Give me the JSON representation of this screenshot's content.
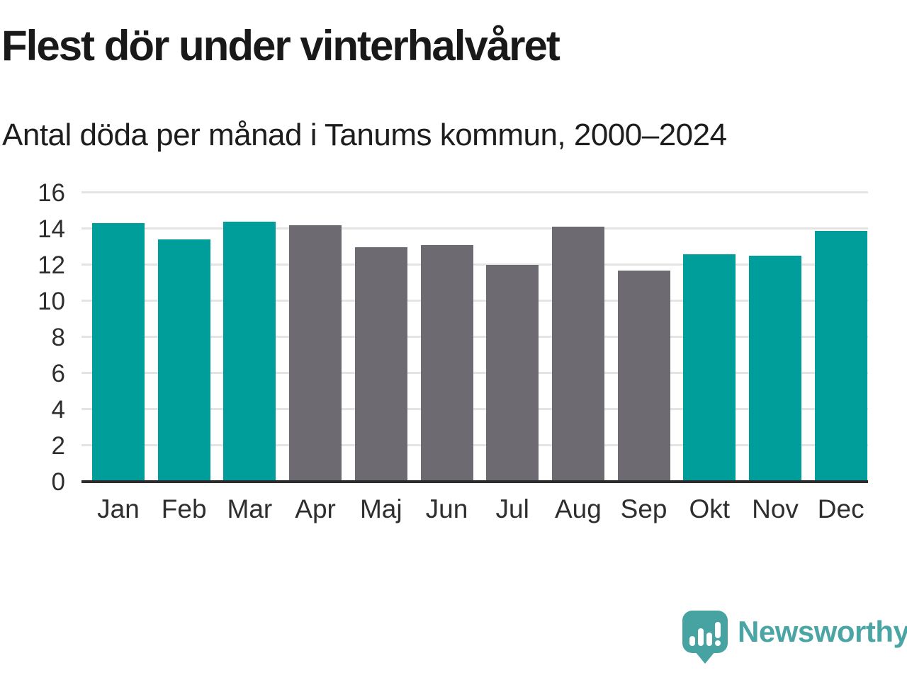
{
  "chart": {
    "title": "Flest dör under vinterhalvåret",
    "subtitle": "Antal döda per månad i Tanums kommun, 2000–2024"
  },
  "chart_data": {
    "type": "bar",
    "title": "Flest dör under vinterhalvåret",
    "subtitle": "Antal döda per månad i Tanums kommun, 2000–2024",
    "categories": [
      "Jan",
      "Feb",
      "Mar",
      "Apr",
      "Maj",
      "Jun",
      "Jul",
      "Aug",
      "Sep",
      "Okt",
      "Nov",
      "Dec"
    ],
    "values": [
      14.3,
      13.4,
      14.4,
      14.2,
      13.0,
      13.1,
      12.0,
      14.1,
      11.7,
      12.6,
      12.5,
      13.9
    ],
    "bar_groups": [
      "winter",
      "winter",
      "winter",
      "summer",
      "summer",
      "summer",
      "summer",
      "summer",
      "summer",
      "winter",
      "winter",
      "winter"
    ],
    "group_colors": {
      "winter": "#009e9b",
      "summer": "#6e6a71"
    },
    "xlabel": "",
    "ylabel": "",
    "ylim": [
      0,
      16
    ],
    "yticks": [
      0,
      2,
      4,
      6,
      8,
      10,
      12,
      14,
      16
    ],
    "grid": true,
    "legend": "none",
    "gridline_color": "#e4e4e4",
    "axis_line_color": "#2d2d2d",
    "tick_label_color": "#2e2e2e"
  },
  "footer": {
    "brand": "Newsworthy",
    "brand_color": "#4aa5a4",
    "logo_icon": "speech-bubble-bar-chart-exclamation"
  }
}
